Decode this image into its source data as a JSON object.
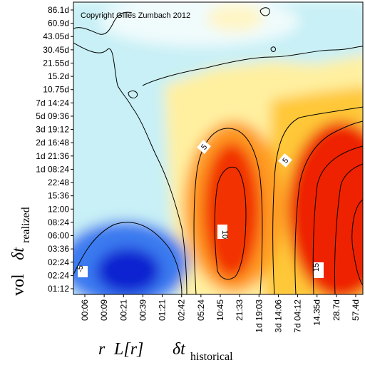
{
  "chart_data": {
    "type": "heatmap",
    "title": "",
    "copyright": "Copyright Gilles Zumbach 2012",
    "x_tick_labels": [
      "00:06",
      "00:09",
      "00:21",
      "00:39",
      "01:21",
      "02:42",
      "05:24",
      "10:45",
      "21:33",
      "1d 19:03",
      "3d 14:06",
      "7d 04:12",
      "14.35d",
      "28.7d",
      "57.4d"
    ],
    "y_tick_labels": [
      "86.1d",
      "60.9d",
      "43.05d",
      "30.45d",
      "21.55d",
      "15.2d",
      "10.75d",
      "7d 14:24",
      "5d 09:36",
      "3d 19:12",
      "2d 16:48",
      "1d 21:36",
      "1d 08:24",
      "22:48",
      "15:36",
      "12:00",
      "08:24",
      "06:00",
      "03:36",
      "02:24",
      "02:24",
      "01:12"
    ],
    "x_label": {
      "r_text": "r",
      "Lr_text": "L[r]",
      "delta_text": "δt",
      "sub": "historical"
    },
    "y_label": {
      "vol_text": "vol",
      "delta_text": "δt",
      "sub": "realized"
    },
    "contour_labels": [
      "5",
      "10",
      "5",
      "15",
      "-5"
    ],
    "colorscale": [
      "#0a1ed2",
      "#2878ee",
      "#8ad8f2",
      "#e6f8fa",
      "#fff8bb",
      "#ffe23c",
      "#ff9a14",
      "#f43b00",
      "#e40e00"
    ]
  }
}
